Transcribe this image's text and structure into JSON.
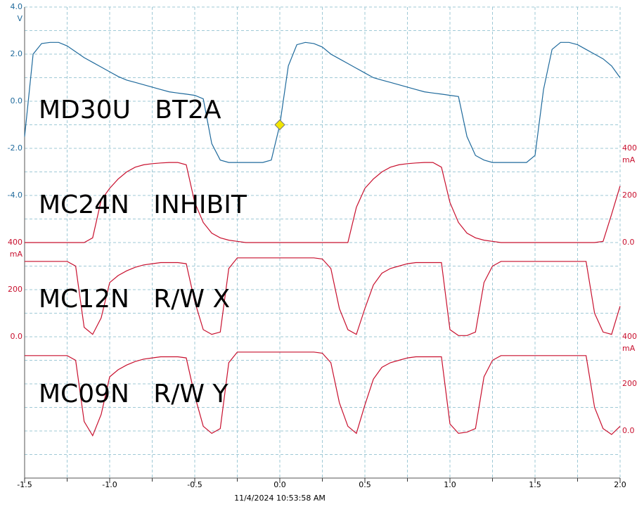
{
  "chart_data": {
    "type": "line",
    "xlim": [
      -1.5,
      2.0
    ],
    "xticks": [
      -1.5,
      {
        "value": -1.0,
        "label": "-1.0"
      },
      -0.5,
      {
        "value": 0,
        "label": "0.0"
      },
      0.5,
      {
        "value": 1.0,
        "label": "1.0"
      },
      1.5,
      {
        "value": 2.0,
        "label": "2.0"
      }
    ],
    "xgrid": [
      -1.25,
      -1.0,
      -0.75,
      -0.5,
      -0.25,
      0,
      0.25,
      0.5,
      0.75,
      1.0,
      1.25,
      1.5,
      1.75,
      2.0
    ],
    "ygrid": [
      -15,
      -14,
      -13,
      -12,
      -11,
      -10,
      -9,
      -8,
      -7,
      -6,
      -5,
      -4,
      -3,
      -2,
      -1,
      0,
      1,
      2,
      3,
      4
    ],
    "grid": true,
    "timestamp": "11/4/2024 10:53:58 AM",
    "x": [
      -1.5,
      -1.45,
      -1.4,
      -1.35,
      -1.3,
      -1.25,
      -1.2,
      -1.15,
      -1.1,
      -1.05,
      -1.0,
      -0.95,
      -0.9,
      -0.85,
      -0.8,
      -0.75,
      -0.7,
      -0.65,
      -0.6,
      -0.55,
      -0.5,
      -0.45,
      -0.4,
      -0.35,
      -0.3,
      -0.25,
      -0.2,
      -0.15,
      -0.1,
      -0.05,
      0,
      0.05,
      0.1,
      0.15,
      0.2,
      0.25,
      0.3,
      0.35,
      0.4,
      0.45,
      0.5,
      0.55,
      0.6,
      0.65,
      0.7,
      0.75,
      0.8,
      0.85,
      0.9,
      0.95,
      1.0,
      1.05,
      1.1,
      1.15,
      1.2,
      1.25,
      1.3,
      1.35,
      1.4,
      1.45,
      1.5,
      1.55,
      1.6,
      1.65,
      1.7,
      1.75,
      1.8,
      1.85,
      1.9,
      1.95,
      2.0
    ],
    "series": [
      {
        "name": "MD30U   BT2A",
        "color": "#1f6a9c",
        "unit": "V",
        "side": "left",
        "ylim": [
          -16,
          4
        ],
        "yticks": [
          {
            "value": 4,
            "label": "4.0"
          },
          {
            "value": 2,
            "label": "2.0"
          },
          {
            "value": 0,
            "label": "0.0"
          },
          {
            "value": -2,
            "label": "-2.0"
          },
          {
            "value": -4,
            "label": "-4.0"
          }
        ],
        "marker": {
          "x": 0,
          "y": -1,
          "color": "#f2e600"
        },
        "values": [
          -1.5,
          2.0,
          2.45,
          2.5,
          2.5,
          2.35,
          2.1,
          1.85,
          1.65,
          1.45,
          1.25,
          1.05,
          0.9,
          0.8,
          0.7,
          0.6,
          0.5,
          0.4,
          0.35,
          0.3,
          0.25,
          0.1,
          -1.8,
          -2.5,
          -2.6,
          -2.6,
          -2.6,
          -2.6,
          -2.6,
          -2.5,
          -1.0,
          1.5,
          2.4,
          2.5,
          2.45,
          2.3,
          2.0,
          1.8,
          1.6,
          1.4,
          1.2,
          1.0,
          0.9,
          0.8,
          0.7,
          0.6,
          0.5,
          0.4,
          0.35,
          0.3,
          0.25,
          0.2,
          -1.5,
          -2.3,
          -2.5,
          -2.6,
          -2.6,
          -2.6,
          -2.6,
          -2.6,
          -2.3,
          0.5,
          2.2,
          2.5,
          2.5,
          2.4,
          2.2,
          2.0,
          1.8,
          1.5,
          1.0
        ]
      },
      {
        "name": "MC24N   INHIBIT",
        "color": "#c8102e",
        "unit": "mA",
        "side": "right",
        "ylim": [
          -1000,
          1000
        ],
        "yticks": [
          400,
          200,
          {
            "value": 0,
            "label": "0.0"
          }
        ],
        "values": [
          0,
          0,
          0,
          0,
          0,
          0,
          0,
          0,
          20,
          180,
          230,
          270,
          300,
          320,
          330,
          335,
          338,
          340,
          340,
          330,
          170,
          85,
          40,
          20,
          10,
          5,
          0,
          0,
          0,
          0,
          0,
          0,
          0,
          0,
          0,
          0,
          0,
          0,
          0,
          150,
          230,
          270,
          300,
          320,
          330,
          335,
          338,
          340,
          340,
          320,
          170,
          85,
          40,
          20,
          10,
          5,
          0,
          0,
          0,
          0,
          0,
          0,
          0,
          0,
          0,
          0,
          0,
          0,
          5,
          120,
          240
        ]
      },
      {
        "name": "MC12N   R/W X",
        "color": "#c8102e",
        "unit": "mA",
        "side": "left",
        "ylim": [
          -600,
          1400
        ],
        "yticks": [
          400,
          200,
          {
            "value": 0,
            "label": "0.0"
          }
        ],
        "values": [
          320,
          320,
          320,
          320,
          320,
          320,
          300,
          40,
          10,
          80,
          230,
          260,
          280,
          295,
          305,
          310,
          315,
          315,
          315,
          310,
          150,
          30,
          10,
          20,
          290,
          335,
          335,
          335,
          335,
          335,
          335,
          335,
          335,
          335,
          335,
          330,
          290,
          120,
          30,
          10,
          120,
          220,
          270,
          290,
          300,
          310,
          315,
          315,
          315,
          315,
          30,
          5,
          5,
          20,
          230,
          300,
          320,
          320,
          320,
          320,
          320,
          320,
          320,
          320,
          320,
          320,
          320,
          100,
          20,
          10,
          130
        ]
      },
      {
        "name": "MC09N   R/W Y",
        "color": "#c8102e",
        "unit": "mA",
        "side": "right",
        "ylim": [
          -200,
          1800
        ],
        "yticks": [
          400,
          200,
          {
            "value": 0,
            "label": "0.0"
          }
        ],
        "values": [
          320,
          320,
          320,
          320,
          320,
          320,
          300,
          40,
          -20,
          70,
          230,
          260,
          280,
          295,
          305,
          310,
          315,
          315,
          315,
          310,
          150,
          20,
          -10,
          10,
          290,
          335,
          335,
          335,
          335,
          335,
          335,
          335,
          335,
          335,
          335,
          330,
          290,
          120,
          20,
          -10,
          110,
          220,
          270,
          290,
          300,
          310,
          315,
          315,
          315,
          315,
          30,
          -10,
          -5,
          10,
          230,
          300,
          320,
          320,
          320,
          320,
          320,
          320,
          320,
          320,
          320,
          320,
          320,
          100,
          10,
          -15,
          20
        ]
      }
    ]
  }
}
